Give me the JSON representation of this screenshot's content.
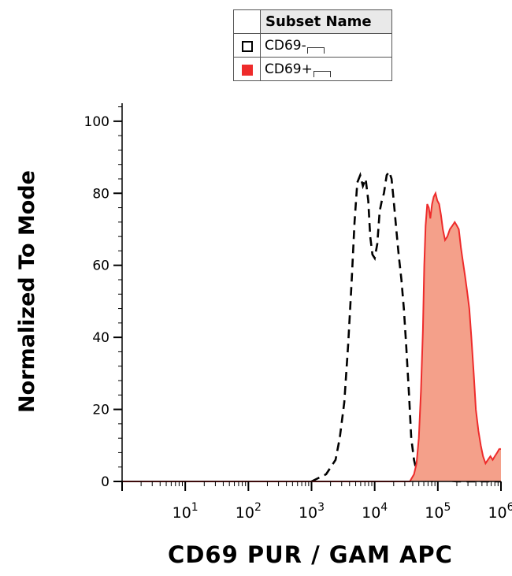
{
  "legend": {
    "header": "Subset Name",
    "items": [
      {
        "label": "CD69-",
        "swatch_fill": "#ffffff",
        "swatch_border": "#000000",
        "style": "dashed"
      },
      {
        "label": "CD69+",
        "swatch_fill": "#ee2b2b",
        "swatch_border": "#ee2b2b",
        "style": "filled"
      }
    ]
  },
  "chart_data": {
    "type": "area",
    "xlabel": "CD69 PUR / GAM APC",
    "ylabel": "Normalized To Mode",
    "x_scale": "log",
    "xlim": [
      1,
      1000000
    ],
    "ylim": [
      0,
      105
    ],
    "x_ticks": [
      {
        "base": "10",
        "exp": "1",
        "value": 10
      },
      {
        "base": "10",
        "exp": "2",
        "value": 100
      },
      {
        "base": "10",
        "exp": "3",
        "value": 1000
      },
      {
        "base": "10",
        "exp": "4",
        "value": 10000
      },
      {
        "base": "10",
        "exp": "5",
        "value": 100000
      },
      {
        "base": "10",
        "exp": "6",
        "value": 1000000
      }
    ],
    "y_ticks": [
      0,
      20,
      40,
      60,
      80,
      100
    ],
    "grid": false,
    "series": [
      {
        "name": "CD69-",
        "style": "dashed",
        "color": "#000000",
        "x": [
          1000,
          1700,
          2400,
          2800,
          3300,
          3800,
          4300,
          4800,
          5300,
          5900,
          6500,
          7200,
          7900,
          8500,
          9200,
          10000,
          11000,
          12000,
          13000,
          14000,
          15500,
          17000,
          18500,
          20000,
          22000,
          24000,
          26500,
          29000,
          31500,
          35000,
          38000,
          42000,
          46000,
          50000,
          56000,
          63000,
          71000,
          80000,
          100000,
          200000,
          1000000
        ],
        "y": [
          0,
          2,
          6,
          12,
          22,
          38,
          55,
          72,
          83,
          85,
          82,
          84,
          78,
          68,
          63,
          62,
          66,
          75,
          78,
          80,
          85,
          86,
          84,
          78,
          70,
          63,
          56,
          48,
          38,
          24,
          12,
          6,
          3,
          1,
          0.5,
          0,
          0.5,
          0,
          0.5,
          0,
          0
        ]
      },
      {
        "name": "CD69+",
        "style": "filled",
        "color": "#ee2b2b",
        "fill": "#f4a08a",
        "x": [
          1,
          36000,
          42000,
          46000,
          50000,
          54000,
          58000,
          61000,
          64000,
          68000,
          72000,
          76000,
          81000,
          86000,
          92000,
          98000,
          105000,
          112000,
          120000,
          130000,
          142000,
          155000,
          170000,
          185000,
          200000,
          215000,
          232000,
          250000,
          270000,
          290000,
          315000,
          340000,
          370000,
          400000,
          440000,
          480000,
          520000,
          570000,
          620000,
          680000,
          740000,
          800000,
          870000,
          940000,
          1000000
        ],
        "y": [
          0,
          0,
          2,
          5,
          12,
          25,
          42,
          60,
          71,
          77,
          76,
          73,
          77,
          79,
          80,
          78,
          77,
          74,
          70,
          67,
          68,
          70,
          71,
          72,
          71,
          70,
          65,
          61,
          57,
          53,
          48,
          40,
          30,
          20,
          14,
          10,
          7,
          5,
          6,
          7,
          6,
          7,
          8,
          9,
          9
        ]
      }
    ]
  }
}
